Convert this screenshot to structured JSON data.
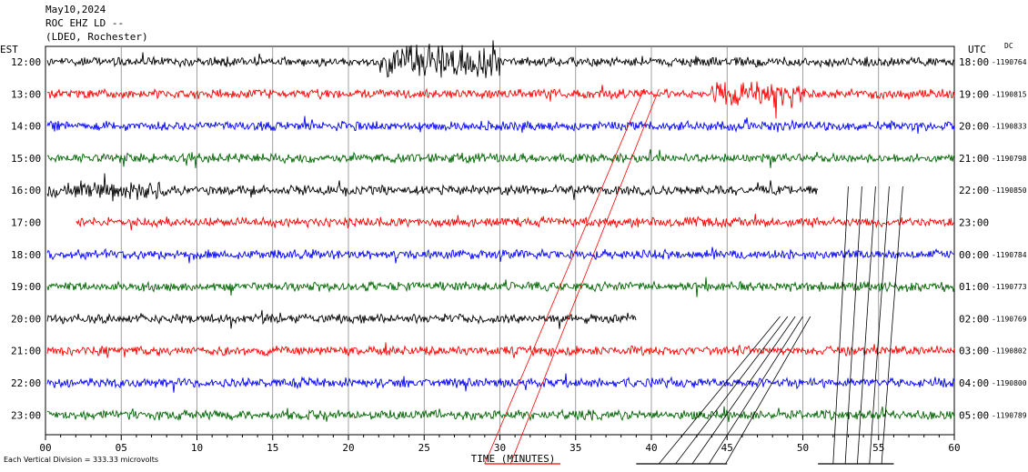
{
  "header": {
    "date": "May10,2024",
    "station": "ROC EHZ LD --",
    "network": "(LDEO, Rochester)"
  },
  "labels": {
    "left_tz": "EST",
    "right_tz": "UTC",
    "dc": "DC",
    "footer": "Each Vertical Division =  333.33 microvolts"
  },
  "chart_data": {
    "type": "line",
    "xlabel": "TIME (MINUTES)",
    "xlim": [
      0,
      60
    ],
    "x_ticks": [
      "00",
      "05",
      "10",
      "15",
      "20",
      "25",
      "30",
      "35",
      "40",
      "45",
      "50",
      "55",
      "60"
    ],
    "colors": [
      "#000000",
      "#ff0000",
      "#0000ff",
      "#006400"
    ],
    "rows": [
      {
        "est": "12:00",
        "utc": "18:00",
        "offset": "-1190764",
        "color": "#000000"
      },
      {
        "est": "13:00",
        "utc": "19:00",
        "offset": "-1190815",
        "color": "#ff0000"
      },
      {
        "est": "14:00",
        "utc": "20:00",
        "offset": "-1190833",
        "color": "#0000ff"
      },
      {
        "est": "15:00",
        "utc": "21:00",
        "offset": "-1190798",
        "color": "#006400"
      },
      {
        "est": "16:00",
        "utc": "22:00",
        "offset": "-1190850",
        "color": "#000000"
      },
      {
        "est": "17:00",
        "utc": "23:00",
        "offset": "",
        "color": "#ff0000"
      },
      {
        "est": "18:00",
        "utc": "00:00",
        "offset": "-1190784",
        "color": "#0000ff"
      },
      {
        "est": "19:00",
        "utc": "01:00",
        "offset": "-1190773",
        "color": "#006400"
      },
      {
        "est": "20:00",
        "utc": "02:00",
        "offset": "-1190769",
        "color": "#000000"
      },
      {
        "est": "21:00",
        "utc": "03:00",
        "offset": "-1190802",
        "color": "#ff0000"
      },
      {
        "est": "22:00",
        "utc": "04:00",
        "offset": "-1190800",
        "color": "#0000ff"
      },
      {
        "est": "23:00",
        "utc": "05:00",
        "offset": "-1190789",
        "color": "#006400"
      }
    ]
  }
}
